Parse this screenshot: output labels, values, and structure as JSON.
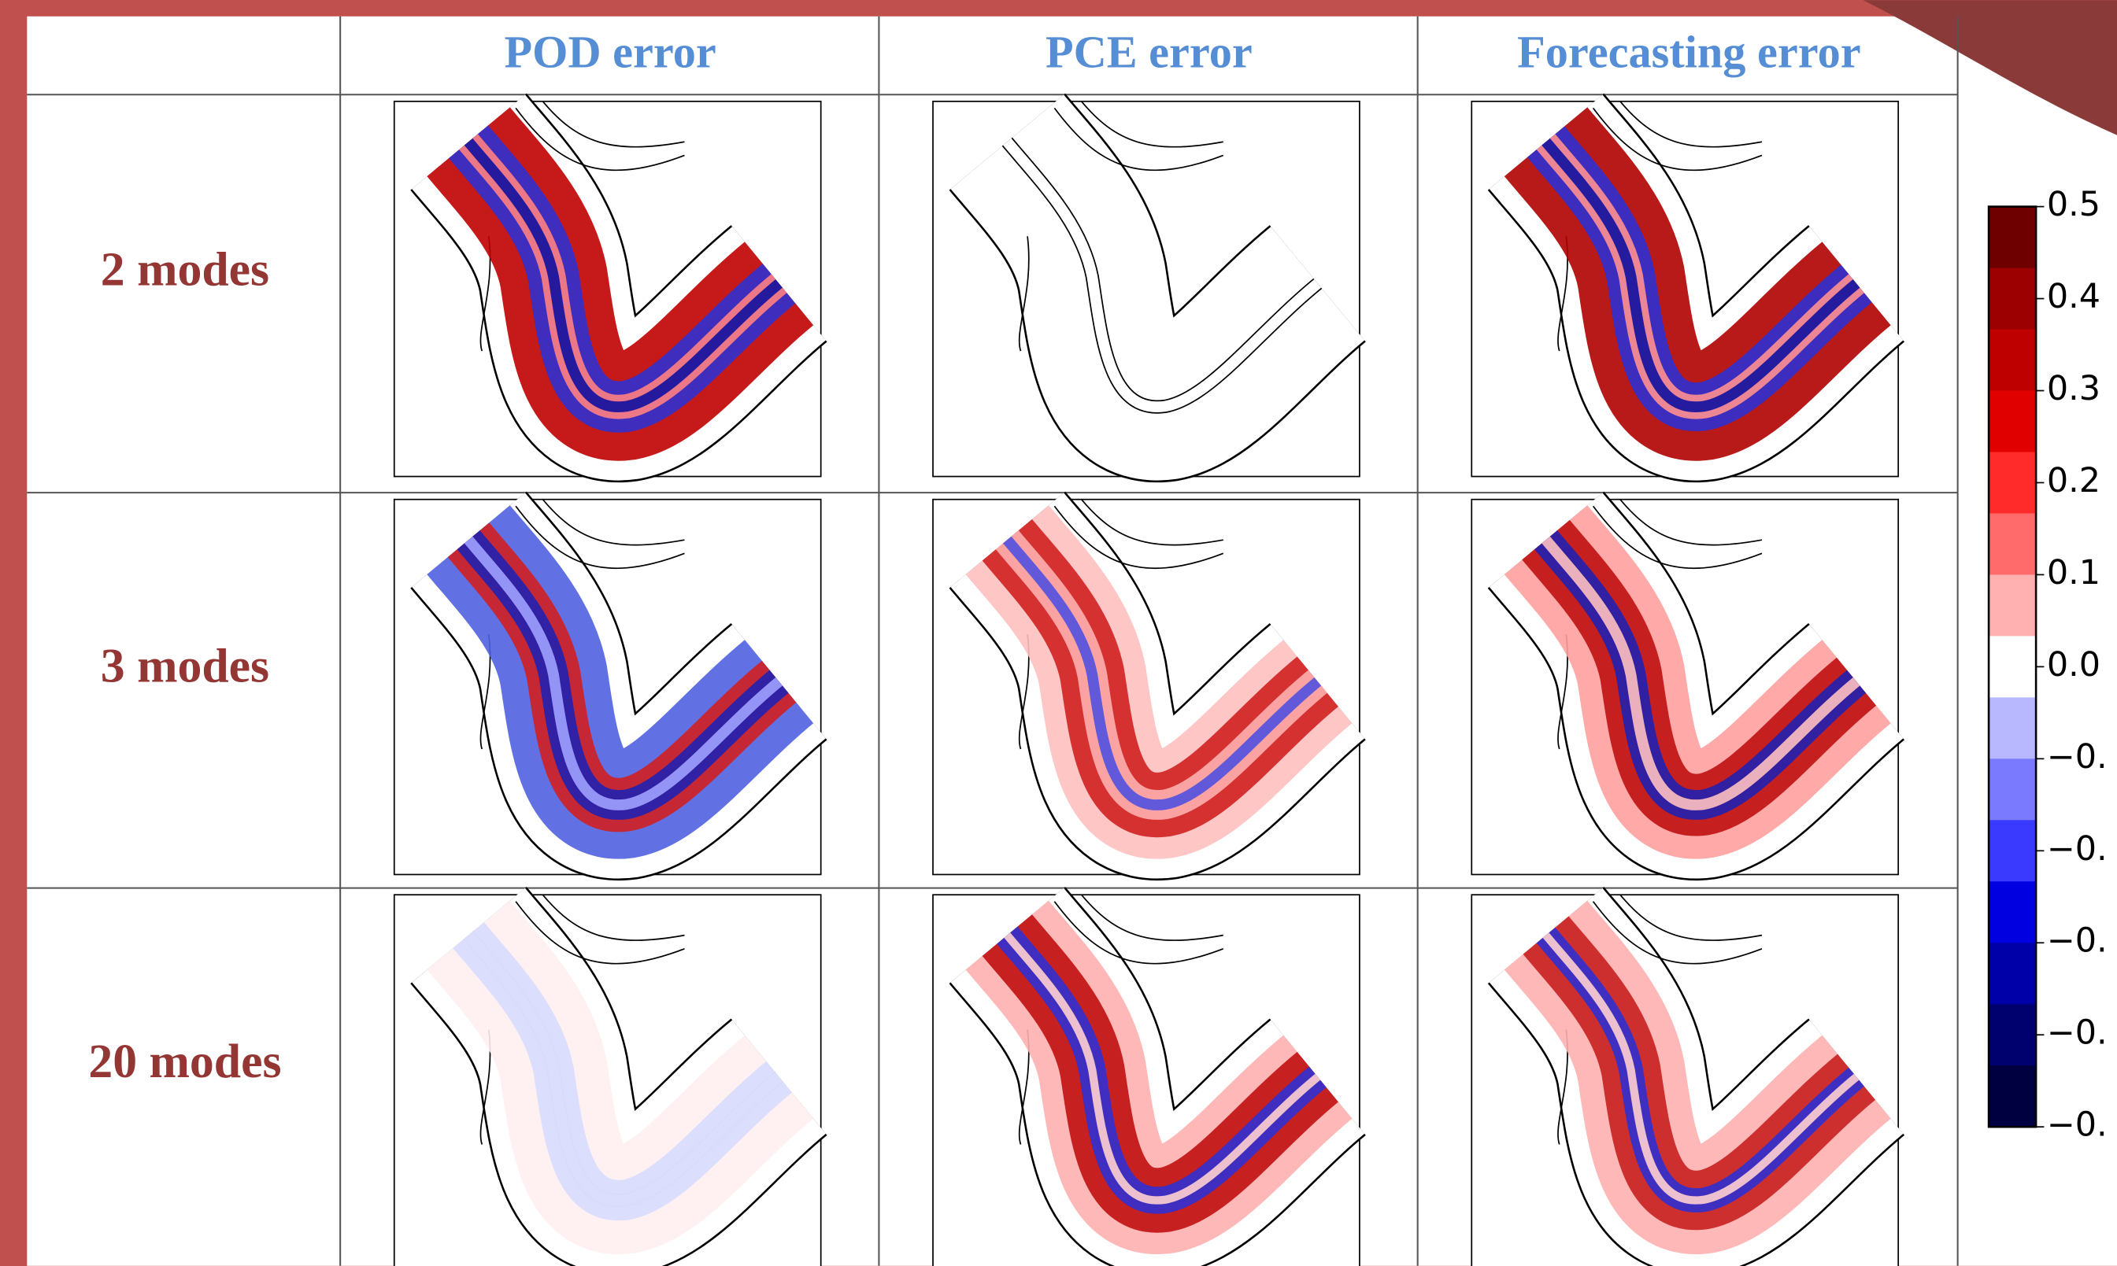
{
  "header": {
    "columns": [
      "POD error",
      "PCE error",
      "Forecasting error"
    ]
  },
  "rows": [
    "2 modes",
    "3 modes",
    "20 modes"
  ],
  "colorbar": {
    "labels": [
      "0.5",
      "0.4",
      "0.3",
      "0.2",
      "0.1",
      "0.0",
      "−0.",
      "−0.",
      "−0.",
      "−0.",
      "−0."
    ]
  }
}
